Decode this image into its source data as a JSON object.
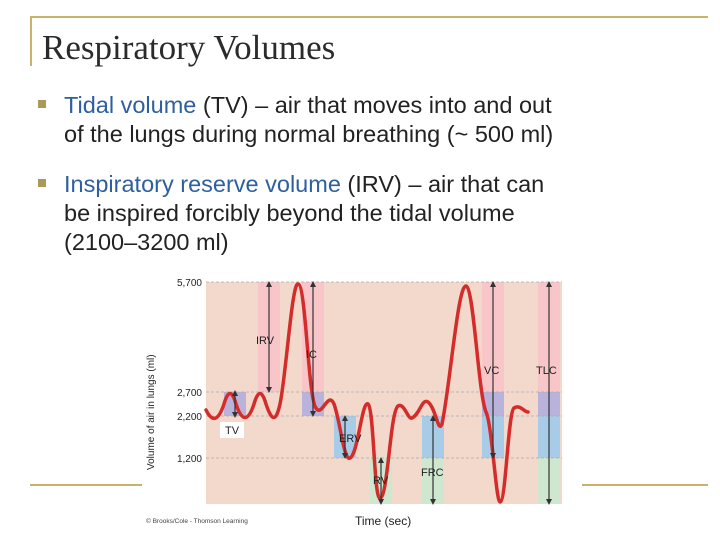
{
  "slide": {
    "title": "Respiratory Volumes",
    "bullets": [
      {
        "term": "Tidal volume",
        "rest_line1": " (TV) – air that moves into and out",
        "line2": "of the lungs during normal breathing (~ 500 ml)"
      },
      {
        "term": "Inspiratory reserve volume",
        "rest_line1": " (IRV) – air that can",
        "line2": "be inspired forcibly beyond the tidal volume",
        "line3": "(2100–3200 ml)"
      }
    ]
  },
  "diagram": {
    "y_axis_label": "Volume of air in lungs (ml)",
    "x_axis_label": "Time (sec)",
    "copyright": "© Brooks/Cole - Thomson Learning",
    "y_ticks": [
      "5,700",
      "2,700",
      "2,200",
      "1,200"
    ],
    "labels": {
      "irv": "IRV",
      "ic": "IC",
      "vc": "VC",
      "tlc": "TLC",
      "tv": "TV",
      "erv": "ERV",
      "rv": "RV",
      "frc": "FRC"
    },
    "colors": {
      "background": "#f3d8cc",
      "irv_band": "#f8c6c8",
      "tv_band": "#b9b3dc",
      "erv_band": "#a8cbe8",
      "rv_band": "#cfe6cf",
      "curve": "#d32c2a",
      "accent_text": "#2e5f9e",
      "frame": "#c9b36a"
    }
  }
}
